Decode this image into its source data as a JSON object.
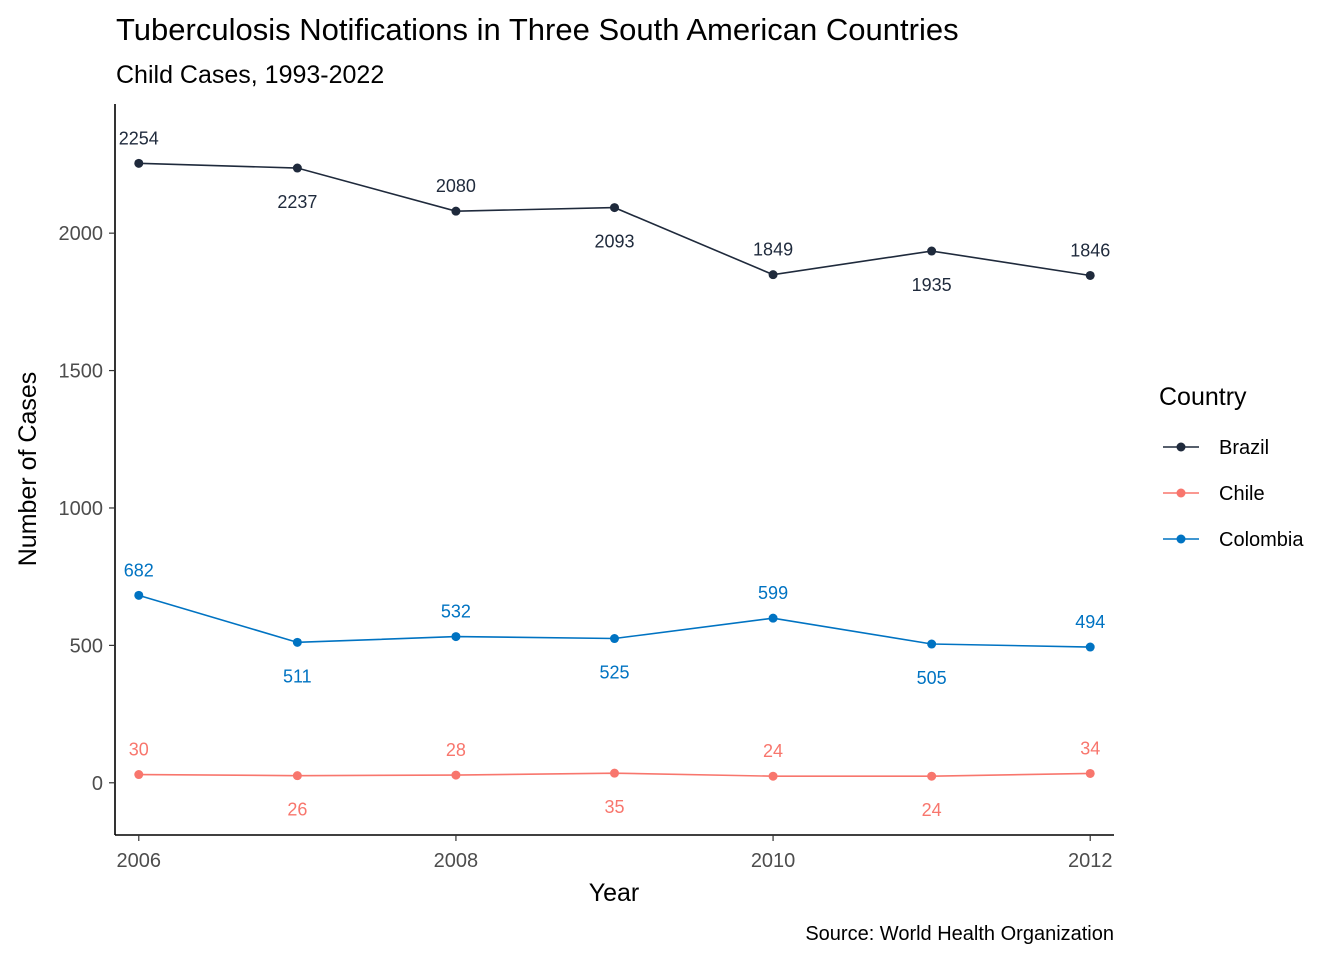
{
  "chart_data": {
    "type": "line",
    "title": "Tuberculosis Notifications in Three South American Countries",
    "subtitle": "Child Cases, 1993-2022",
    "xlabel": "Year",
    "ylabel": "Number of Cases",
    "caption": "Source: World Health Organization",
    "x": [
      2006,
      2007,
      2008,
      2009,
      2010,
      2011,
      2012
    ],
    "x_ticks": [
      "2006",
      "2008",
      "2010",
      "2012"
    ],
    "y_ticks": [
      "0",
      "500",
      "1000",
      "1500",
      "2000"
    ],
    "xlim": [
      2005.85,
      2012.15
    ],
    "ylim": [
      -190,
      2470
    ],
    "grid": false,
    "legend": {
      "title": "Country",
      "position": "right"
    },
    "series": [
      {
        "name": "Brazil",
        "color": "#1f2a3c",
        "values": [
          2254,
          2237,
          2080,
          2093,
          1849,
          1935,
          1846
        ]
      },
      {
        "name": "Chile",
        "color": "#f8766d",
        "values": [
          30,
          26,
          28,
          35,
          24,
          24,
          34
        ]
      },
      {
        "name": "Colombia",
        "color": "#0073c2",
        "values": [
          682,
          511,
          532,
          525,
          599,
          505,
          494
        ]
      }
    ],
    "label_positions": {
      "Brazil": [
        "above",
        "below",
        "above",
        "below",
        "above",
        "below",
        "above"
      ],
      "Chile": [
        "above",
        "below",
        "above",
        "below",
        "above",
        "below",
        "above"
      ],
      "Colombia": [
        "above",
        "below",
        "above",
        "below",
        "above",
        "below",
        "above"
      ]
    }
  }
}
